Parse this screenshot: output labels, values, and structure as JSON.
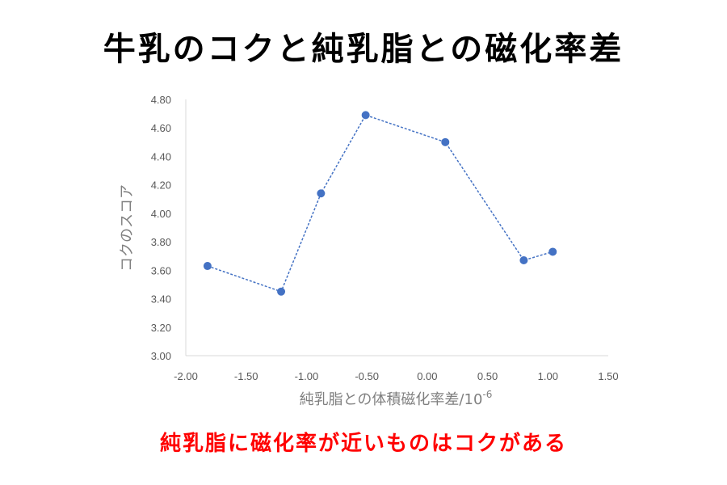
{
  "title": "牛乳のコクと純乳脂との磁化率差",
  "caption": "純乳脂に磁化率が近いものはコクがある",
  "colors": {
    "series": "#4472c4",
    "axis": "#d9d9d9",
    "caption": "#ff0000"
  },
  "chart_data": {
    "type": "scatter",
    "xlabel": "純乳脂との体積磁化率差/10",
    "xlabel_superscript": "-6",
    "ylabel": "コクのスコア",
    "xlim": [
      -2.0,
      1.5
    ],
    "ylim": [
      3.0,
      4.8
    ],
    "x_ticks": [
      "-2.00",
      "-1.50",
      "-1.00",
      "-0.50",
      "0.00",
      "0.50",
      "1.00",
      "1.50"
    ],
    "y_ticks": [
      "3.00",
      "3.20",
      "3.40",
      "3.60",
      "3.80",
      "4.00",
      "4.20",
      "4.40",
      "4.60",
      "4.80"
    ],
    "grid": false,
    "line_style": "dashed",
    "points": [
      {
        "x": -1.82,
        "y": 3.63
      },
      {
        "x": -1.21,
        "y": 3.45
      },
      {
        "x": -0.88,
        "y": 4.14
      },
      {
        "x": -0.51,
        "y": 4.69
      },
      {
        "x": 0.15,
        "y": 4.5
      },
      {
        "x": 0.8,
        "y": 3.67
      },
      {
        "x": 1.04,
        "y": 3.73
      }
    ]
  }
}
